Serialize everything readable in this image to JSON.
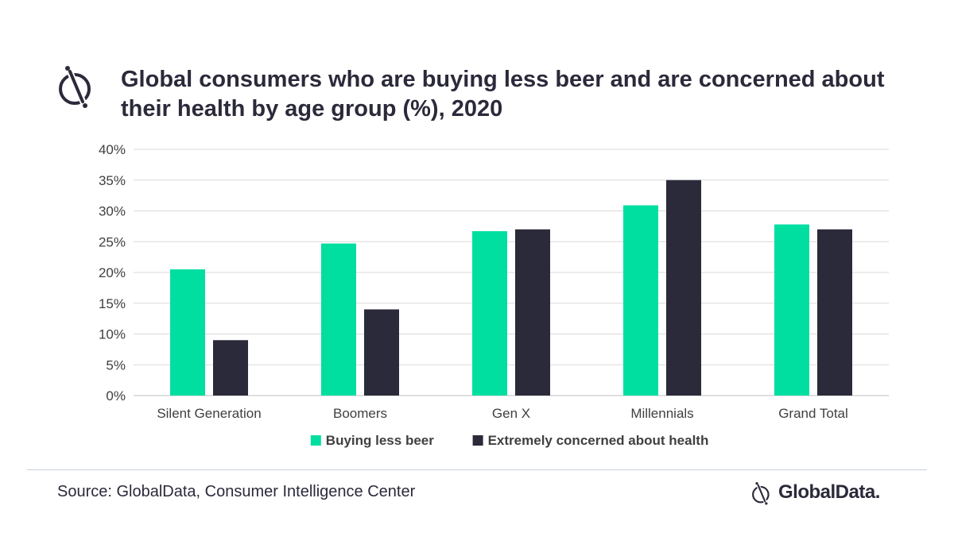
{
  "header": {
    "title": "Global consumers who are buying less beer and are concerned about their health by age group (%), 2020",
    "logo_icon": "globaldata-logo-icon"
  },
  "chart_data": {
    "type": "bar",
    "title": "Global consumers who are buying less beer and are concerned about their health by age group (%), 2020",
    "xlabel": "",
    "ylabel": "",
    "categories": [
      "Silent Generation",
      "Boomers",
      "Gen X",
      "Millennials",
      "Grand Total"
    ],
    "series": [
      {
        "name": "Buying less beer",
        "color": "#00dea0",
        "values": [
          20.5,
          24.7,
          26.7,
          30.9,
          27.8
        ]
      },
      {
        "name": "Extremely concerned about health",
        "color": "#2b2a3a",
        "values": [
          9,
          14,
          27,
          35,
          27
        ]
      }
    ],
    "ylim": [
      0,
      40
    ],
    "yticks": [
      0,
      5,
      10,
      15,
      20,
      25,
      30,
      35,
      40
    ],
    "ytick_labels": [
      "0%",
      "5%",
      "10%",
      "15%",
      "20%",
      "25%",
      "30%",
      "35%",
      "40%"
    ],
    "grid": true,
    "legend_position": "bottom-center"
  },
  "footer": {
    "source": "Source: GlobalData, Consumer Intelligence Center",
    "brand": "GlobalData.",
    "brand_icon": "globaldata-logo-icon"
  }
}
